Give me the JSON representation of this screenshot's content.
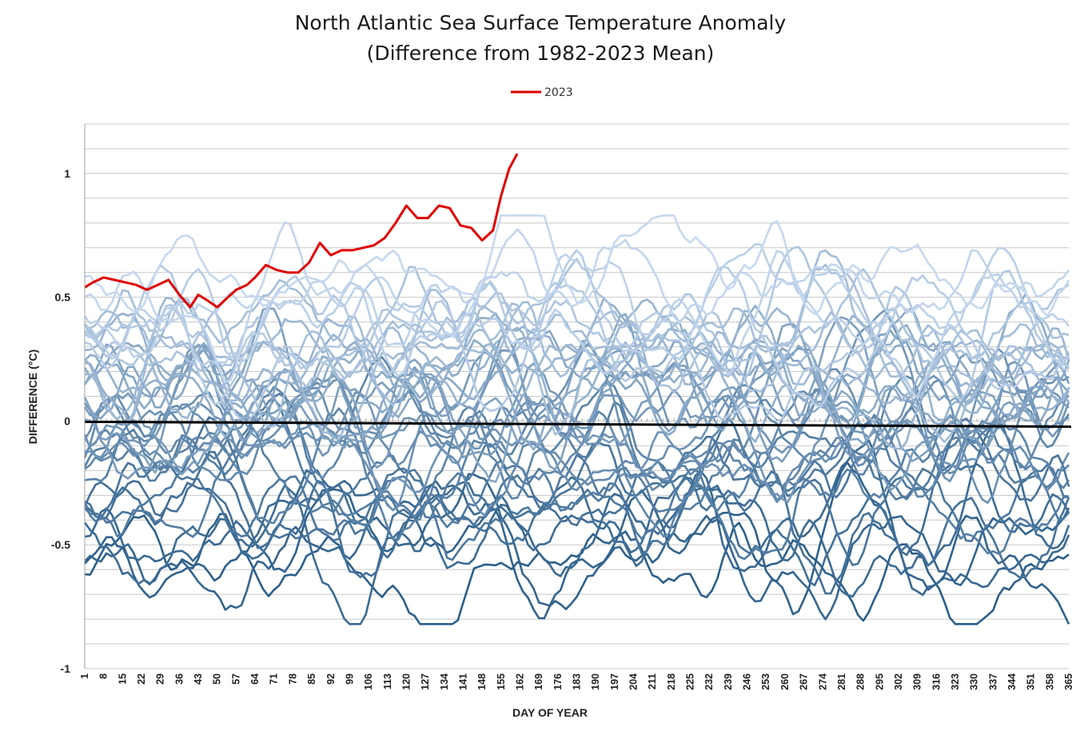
{
  "chart_data": {
    "type": "line",
    "title": "North Atlantic Sea Surface Temperature Anomaly",
    "subtitle": "(Difference from 1982-2023 Mean)",
    "xlabel": "DAY OF YEAR",
    "ylabel": "DIFFERENCE (°C)",
    "xlim": [
      1,
      365
    ],
    "ylim": [
      -1,
      1.2
    ],
    "y_ticks": [
      -1,
      -0.5,
      0,
      0.5,
      1
    ],
    "y_tick_labels": [
      "-1",
      "-0.5",
      "0",
      "0.5",
      "1"
    ],
    "x_ticks": [
      1,
      8,
      15,
      22,
      29,
      36,
      43,
      50,
      57,
      64,
      71,
      78,
      85,
      92,
      99,
      106,
      113,
      120,
      127,
      134,
      141,
      148,
      155,
      162,
      169,
      176,
      183,
      190,
      197,
      204,
      211,
      218,
      225,
      232,
      239,
      246,
      253,
      260,
      267,
      274,
      281,
      288,
      295,
      302,
      309,
      316,
      323,
      330,
      337,
      344,
      351,
      358,
      365
    ],
    "grid": true,
    "legend": {
      "position": "top-center",
      "entries": [
        "2023"
      ]
    },
    "highlight_series": {
      "name": "2023",
      "color": "#e00000",
      "x": [
        1,
        4,
        8,
        12,
        16,
        20,
        24,
        28,
        32,
        36,
        40,
        43,
        46,
        50,
        54,
        57,
        61,
        64,
        68,
        72,
        76,
        80,
        84,
        88,
        92,
        96,
        100,
        104,
        108,
        112,
        116,
        120,
        124,
        128,
        132,
        136,
        140,
        144,
        148,
        152,
        155,
        158,
        161
      ],
      "y": [
        0.54,
        0.56,
        0.58,
        0.57,
        0.56,
        0.55,
        0.53,
        0.55,
        0.57,
        0.51,
        0.46,
        0.51,
        0.49,
        0.46,
        0.5,
        0.53,
        0.55,
        0.58,
        0.63,
        0.61,
        0.6,
        0.6,
        0.64,
        0.72,
        0.67,
        0.69,
        0.69,
        0.7,
        0.71,
        0.74,
        0.8,
        0.87,
        0.82,
        0.82,
        0.87,
        0.86,
        0.79,
        0.78,
        0.73,
        0.77,
        0.91,
        1.02,
        1.08
      ]
    },
    "mean_line": {
      "value": 0,
      "color": "#000000"
    },
    "background_series": {
      "count": 41,
      "color_range": [
        "#c6d8ee",
        "#2c5f8a"
      ],
      "description": "Yearly anomaly lines for prior years, ranging roughly from -0.8 to 0.8 °C",
      "bands": [
        {
          "base": -0.62,
          "amp": 0.12
        },
        {
          "base": -0.55,
          "amp": 0.14
        },
        {
          "base": -0.5,
          "amp": 0.13
        },
        {
          "base": -0.46,
          "amp": 0.15
        },
        {
          "base": -0.42,
          "amp": 0.14
        },
        {
          "base": -0.38,
          "amp": 0.15
        },
        {
          "base": -0.35,
          "amp": 0.14
        },
        {
          "base": -0.32,
          "amp": 0.15
        },
        {
          "base": -0.29,
          "amp": 0.14
        },
        {
          "base": -0.26,
          "amp": 0.15
        },
        {
          "base": -0.23,
          "amp": 0.14
        },
        {
          "base": -0.2,
          "amp": 0.15
        },
        {
          "base": -0.17,
          "amp": 0.14
        },
        {
          "base": -0.14,
          "amp": 0.15
        },
        {
          "base": -0.11,
          "amp": 0.14
        },
        {
          "base": -0.08,
          "amp": 0.15
        },
        {
          "base": -0.05,
          "amp": 0.14
        },
        {
          "base": -0.02,
          "amp": 0.15
        },
        {
          "base": 0.01,
          "amp": 0.14
        },
        {
          "base": 0.04,
          "amp": 0.15
        },
        {
          "base": 0.07,
          "amp": 0.14
        },
        {
          "base": 0.1,
          "amp": 0.15
        },
        {
          "base": 0.12,
          "amp": 0.14
        },
        {
          "base": 0.14,
          "amp": 0.15
        },
        {
          "base": 0.16,
          "amp": 0.14
        },
        {
          "base": 0.18,
          "amp": 0.15
        },
        {
          "base": 0.2,
          "amp": 0.14
        },
        {
          "base": 0.22,
          "amp": 0.15
        },
        {
          "base": 0.24,
          "amp": 0.14
        },
        {
          "base": 0.26,
          "amp": 0.15
        },
        {
          "base": 0.28,
          "amp": 0.14
        },
        {
          "base": 0.3,
          "amp": 0.15
        },
        {
          "base": 0.32,
          "amp": 0.14
        },
        {
          "base": 0.34,
          "amp": 0.15
        },
        {
          "base": 0.36,
          "amp": 0.14
        },
        {
          "base": 0.38,
          "amp": 0.15
        },
        {
          "base": 0.4,
          "amp": 0.14
        },
        {
          "base": 0.43,
          "amp": 0.14
        },
        {
          "base": 0.47,
          "amp": 0.13
        },
        {
          "base": 0.52,
          "amp": 0.13
        },
        {
          "base": 0.58,
          "amp": 0.12
        }
      ]
    }
  }
}
